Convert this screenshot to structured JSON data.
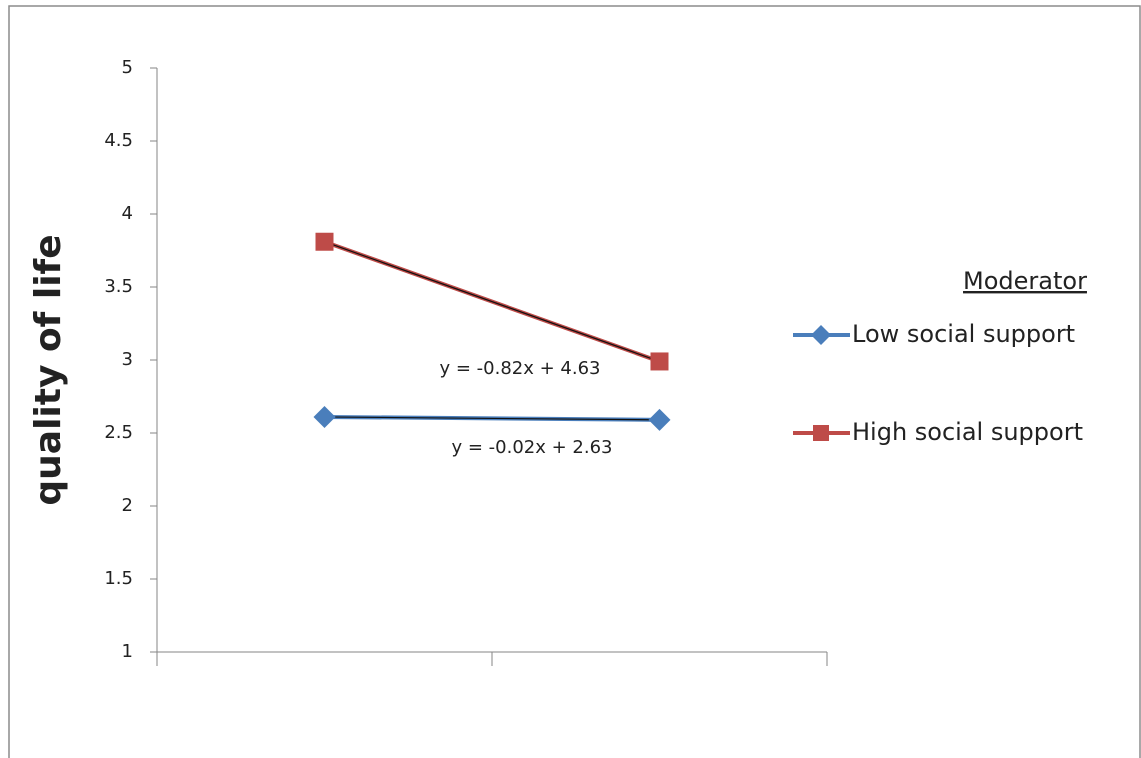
{
  "chart_data": {
    "type": "line",
    "y_label": "quality of life",
    "legend_title": "Moderator",
    "legend_position": "right",
    "categories": [
      null,
      null
    ],
    "ylim": [
      1,
      5
    ],
    "yticks": [
      1,
      1.5,
      2,
      2.5,
      3,
      3.5,
      4,
      4.5,
      5
    ],
    "series": [
      {
        "name": "Low social support",
        "color": "#4a7ebb",
        "marker": "diamond",
        "values": [
          2.61,
          2.59
        ],
        "trendline": "y = -0.02x + 2.63"
      },
      {
        "name": "High social support",
        "color": "#be4b48",
        "marker": "square",
        "values": [
          3.81,
          2.99
        ],
        "trendline": "y = -0.82x + 4.63"
      }
    ]
  }
}
